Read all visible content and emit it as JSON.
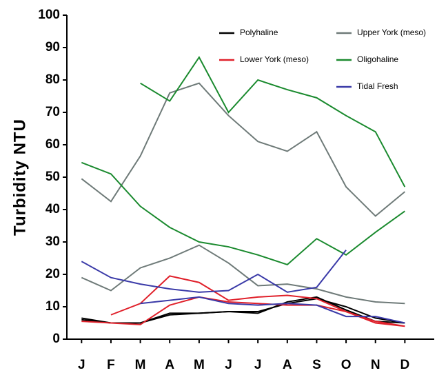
{
  "chart_data": {
    "type": "line",
    "y_label": "Turbidity  NTU",
    "categories": [
      "J",
      "F",
      "M",
      "A",
      "M",
      "J",
      "J",
      "A",
      "S",
      "O",
      "N",
      "D"
    ],
    "ylim": [
      0,
      100
    ],
    "yticks": [
      0,
      10,
      20,
      30,
      40,
      50,
      60,
      70,
      80,
      90,
      100
    ],
    "series": [
      {
        "name": "Polyhaline",
        "color": "#000000",
        "lines": [
          [
            6.5,
            5,
            5,
            8,
            8,
            8.5,
            8.5,
            11,
            12.5,
            10,
            6.5,
            5
          ],
          [
            6,
            5,
            5,
            7.5,
            8,
            8.5,
            8,
            11.5,
            13,
            9,
            5.5,
            5
          ]
        ]
      },
      {
        "name": "Upper York (meso)",
        "color": "#6e7a78",
        "lines": [
          [
            49.5,
            42.5,
            56.5,
            76,
            79,
            69,
            61,
            58,
            64,
            47,
            38,
            45.5
          ],
          [
            19,
            15,
            22,
            25,
            29,
            23.5,
            16.5,
            17,
            15.5,
            13,
            11.5,
            11
          ]
        ]
      },
      {
        "name": "Lower York (meso)",
        "color": "#e0202a",
        "lines": [
          [
            null,
            7.5,
            11,
            19.5,
            17.5,
            12,
            13,
            13.5,
            12.5,
            8.5,
            5,
            4
          ],
          [
            5.5,
            5,
            4.5,
            10.5,
            13,
            11.5,
            11,
            10.5,
            10.5,
            8.5,
            5.5,
            4
          ]
        ]
      },
      {
        "name": "Oligohaline",
        "color": "#1a8a2e",
        "lines": [
          [
            null,
            null,
            79,
            73.5,
            87,
            70,
            80,
            77,
            74.5,
            69,
            64,
            47
          ],
          [
            54.5,
            51,
            41,
            34.5,
            30,
            28.5,
            26,
            23,
            31,
            26,
            33,
            39.5
          ]
        ]
      },
      {
        "name": "Tidal Fresh",
        "color": "#3a3aa8",
        "lines": [
          [
            24,
            19,
            17,
            15.5,
            14.5,
            15,
            20,
            14.5,
            16,
            27.5,
            null,
            null
          ],
          [
            null,
            null,
            11,
            12,
            13,
            11,
            10.5,
            11,
            10.5,
            7,
            7,
            5
          ]
        ]
      }
    ]
  }
}
